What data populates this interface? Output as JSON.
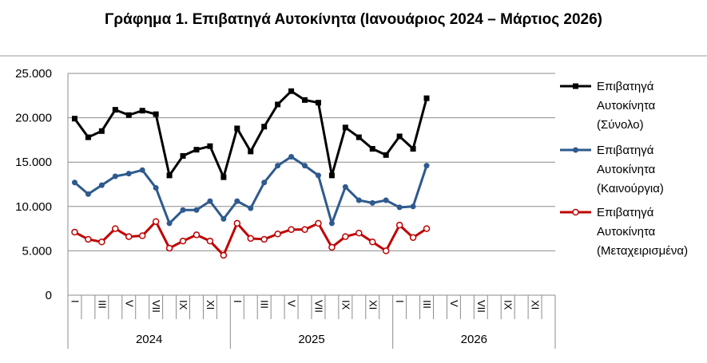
{
  "chart_data": {
    "type": "line",
    "title": "Γράφημα 1. Επιβατηγά Αυτοκίνητα (Ιανουάριος 2024 – Μάρτιος 2026)",
    "xlabel": "",
    "ylabel": "",
    "ylim": [
      0,
      25000
    ],
    "yticks": [
      "0",
      "5.000",
      "10.000",
      "15.000",
      "20.000",
      "25.000"
    ],
    "ytick_values": [
      0,
      5000,
      10000,
      15000,
      20000,
      25000
    ],
    "grid": true,
    "legend_position": "right",
    "month_labels": [
      "I",
      "",
      "III",
      "",
      "V",
      "",
      "VII",
      "",
      "IX",
      "",
      "XI",
      "",
      "I",
      "",
      "III",
      "",
      "V",
      "",
      "VII",
      "",
      "IX",
      "",
      "XI",
      "",
      "I",
      "",
      "III",
      "",
      "V",
      "",
      "VII",
      "",
      "IX",
      "",
      "XI",
      ""
    ],
    "years": [
      "2024",
      "2025",
      "2026"
    ],
    "months_per_year": 12,
    "series": [
      {
        "name": "Επιβατηγά Αυτοκίνητα (Σύνολο)",
        "legend_lines": [
          "Επιβατηγά",
          "Αυτοκίνητα",
          "(Σύνολο)"
        ],
        "color": "#000000",
        "marker": "square",
        "values": [
          19900,
          17800,
          18500,
          20900,
          20300,
          20800,
          20400,
          13500,
          15700,
          16400,
          16800,
          13300,
          18800,
          16200,
          19000,
          21500,
          23000,
          22000,
          21700,
          13500,
          18900,
          17800,
          16500,
          15800,
          17900,
          16500,
          22200
        ]
      },
      {
        "name": "Επιβατηγά Αυτοκίνητα (Καινούργια)",
        "legend_lines": [
          "Επιβατηγά",
          "Αυτοκίνητα",
          "(Καινούργια)"
        ],
        "color": "#2E5A8E",
        "marker": "circle",
        "values": [
          12700,
          11400,
          12400,
          13400,
          13700,
          14100,
          12100,
          8100,
          9600,
          9600,
          10600,
          8600,
          10600,
          9800,
          12700,
          14600,
          15600,
          14600,
          13500,
          8100,
          12200,
          10700,
          10400,
          10700,
          9900,
          10000,
          14600
        ]
      },
      {
        "name": "Επιβατηγά Αυτοκίνητα (Μεταχειρισμένα)",
        "legend_lines": [
          "Επιβατηγά",
          "Αυτοκίνητα",
          "(Μεταχειρισμένα)"
        ],
        "color": "#C00000",
        "marker": "hollow-circle",
        "values": [
          7100,
          6300,
          6000,
          7500,
          6600,
          6700,
          8300,
          5300,
          6100,
          6800,
          6100,
          4500,
          8100,
          6400,
          6300,
          6900,
          7400,
          7400,
          8100,
          5400,
          6600,
          7000,
          6000,
          5000,
          7900,
          6500,
          7500
        ]
      }
    ]
  }
}
